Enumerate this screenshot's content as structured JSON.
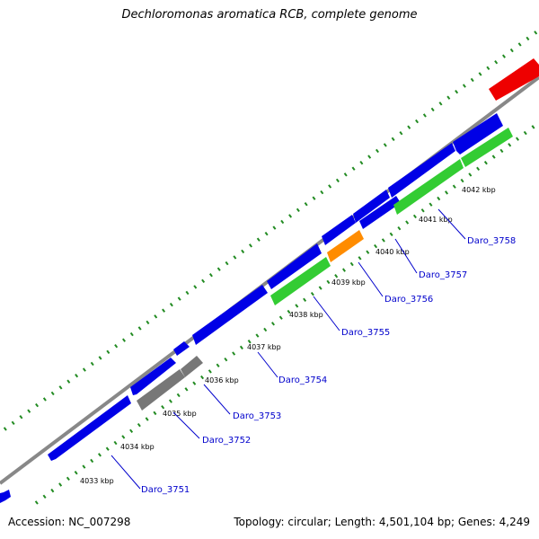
{
  "title": "Dechloromonas aromatica RCB, complete genome",
  "footer": {
    "accession": "Accession: NC_007298",
    "topology": "Topology: circular; Length: 4,501,104 bp; Genes: 4,249"
  },
  "legend_colors": {
    "backbone": "#888888",
    "cds_blue": "#0000e6",
    "cds_green": "#33cc33",
    "cds_gray": "#777777",
    "cds_orange": "#ff8c00",
    "cds_red": "#ee0000",
    "gc_dots": "#228b22",
    "label_line": "#0000cc"
  },
  "ticks": [
    {
      "label": "4033 kbp"
    },
    {
      "label": "4034 kbp"
    },
    {
      "label": "4035 kbp"
    },
    {
      "label": "4036 kbp"
    },
    {
      "label": "4037 kbp"
    },
    {
      "label": "4038 kbp"
    },
    {
      "label": "4039 kbp"
    },
    {
      "label": "4040 kbp"
    },
    {
      "label": "4041 kbp"
    },
    {
      "label": "4042 kbp"
    }
  ],
  "gene_labels": [
    {
      "label": "Daro_3751"
    },
    {
      "label": "Daro_3752"
    },
    {
      "label": "Daro_3753"
    },
    {
      "label": "Daro_3754"
    },
    {
      "label": "Daro_3755"
    },
    {
      "label": "Daro_3756"
    },
    {
      "label": "Daro_3757"
    },
    {
      "label": "Daro_3758"
    }
  ]
}
